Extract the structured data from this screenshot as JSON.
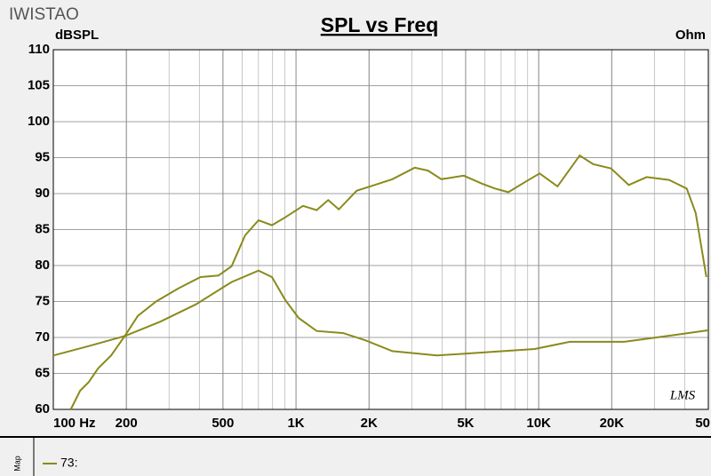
{
  "chart_data": {
    "type": "line",
    "title": "SPL vs Freq",
    "watermark": "IWISTAO",
    "y_label": "dBSPL",
    "y2_label": "Ohm",
    "signature": "LMS",
    "panel_label": "Map",
    "xscale": "log",
    "xlim": [
      100,
      50000
    ],
    "ylim": [
      60,
      110
    ],
    "xticks": [
      {
        "value": 100,
        "label": "100 Hz"
      },
      200,
      500,
      {
        "value": 1000,
        "label": "1K"
      },
      {
        "value": 2000,
        "label": "2K"
      },
      {
        "value": 5000,
        "label": "5K"
      },
      {
        "value": 10000,
        "label": "10K"
      },
      {
        "value": 20000,
        "label": "20K"
      },
      {
        "value": 50000,
        "label": "50"
      }
    ],
    "yticks": [
      60,
      65,
      70,
      75,
      80,
      85,
      90,
      95,
      100,
      105,
      110
    ],
    "grid": true,
    "series": [
      {
        "name": "73:",
        "color": "#8a8a1c",
        "x": [
          118,
          129,
          140,
          153,
          173,
          197,
          223,
          265,
          327,
          404,
          479,
          543,
          617,
          701,
          796,
          903,
          1069,
          1216,
          1357,
          1501,
          1778,
          2108,
          2495,
          3083,
          3500,
          3972,
          4909,
          5821,
          6607,
          7499,
          8886,
          10090,
          11950,
          14760,
          16760,
          19860,
          23500,
          27860,
          34430,
          40740,
          44360,
          49100
        ],
        "values": [
          60,
          62.6,
          63.8,
          65.7,
          67.5,
          70.2,
          73,
          75,
          76.8,
          78.4,
          78.6,
          79.9,
          84.2,
          86.3,
          85.6,
          86.7,
          88.3,
          87.7,
          89.1,
          87.8,
          90.4,
          91.2,
          92,
          93.6,
          93.2,
          92,
          92.5,
          91.4,
          90.7,
          90.2,
          91.7,
          92.8,
          91,
          95.3,
          94.1,
          93.5,
          91.2,
          92.3,
          91.9,
          90.7,
          87.3,
          78.4
        ]
      },
      {
        "color": "#8a8a1c",
        "x": [
          100,
          140,
          197,
          276,
          387,
          543,
          701,
          796,
          903,
          1026,
          1216,
          1565,
          1931,
          2495,
          3803,
          5821,
          9613,
          13420,
          22490,
          37330,
          50000
        ],
        "values": [
          67.5,
          68.8,
          70.2,
          72.2,
          74.6,
          77.7,
          79.3,
          78.4,
          75.2,
          72.7,
          70.9,
          70.6,
          69.6,
          68.1,
          67.5,
          67.9,
          68.4,
          69.4,
          69.4,
          70.4,
          71
        ]
      }
    ]
  }
}
